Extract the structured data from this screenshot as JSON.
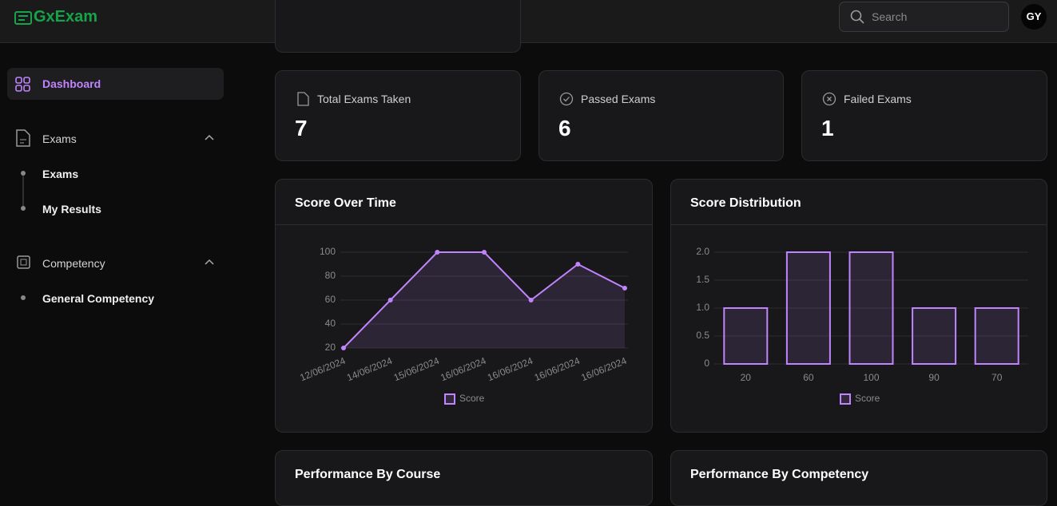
{
  "header": {
    "logo": "GxExam",
    "search_placeholder": "Search",
    "avatar": "GY"
  },
  "sidebar": {
    "items": [
      {
        "label": "Dashboard"
      },
      {
        "label": "Exams",
        "children": [
          "Exams",
          "My Results"
        ]
      },
      {
        "label": "Competency",
        "children": [
          "General Competency"
        ]
      }
    ]
  },
  "stats": [
    {
      "label": "Total Exams Taken",
      "value": 7
    },
    {
      "label": "Passed Exams",
      "value": 6
    },
    {
      "label": "Failed Exams",
      "value": 1
    }
  ],
  "chart_data": [
    {
      "type": "line",
      "title": "Score Over Time",
      "categories": [
        "12/06/2024",
        "14/06/2024",
        "15/06/2024",
        "16/06/2024",
        "16/06/2024",
        "16/06/2024",
        "16/06/2024"
      ],
      "series": [
        {
          "name": "Score",
          "color": "#c084fc",
          "values": [
            20,
            60,
            100,
            100,
            60,
            90,
            70
          ]
        }
      ],
      "ylim": [
        20,
        100
      ],
      "yticks": [
        20,
        40,
        60,
        80,
        100
      ],
      "grid": true
    },
    {
      "type": "bar",
      "title": "Score Distribution",
      "categories": [
        "20",
        "60",
        "100",
        "90",
        "70"
      ],
      "series": [
        {
          "name": "Score",
          "color": "#c084fc",
          "values": [
            1,
            2,
            2,
            1,
            1
          ]
        }
      ],
      "ylim": [
        0,
        2
      ],
      "yticks": [
        0,
        0.5,
        {
          "value": 1,
          "label": "1.0"
        },
        1.5,
        {
          "value": 2,
          "label": "2.0"
        }
      ],
      "grid": true
    }
  ],
  "sections": [
    "Performance By Course",
    "Performance By Competency"
  ]
}
